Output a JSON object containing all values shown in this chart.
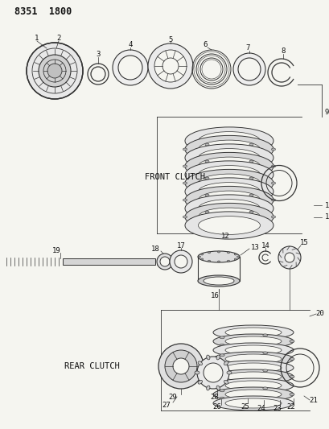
{
  "title": "8351  1800",
  "bg": "#f5f5f0",
  "lc": "#333333",
  "tc": "#111111",
  "front_clutch_label": "FRONT CLUTCH",
  "rear_clutch_label": "REAR CLUTCH"
}
